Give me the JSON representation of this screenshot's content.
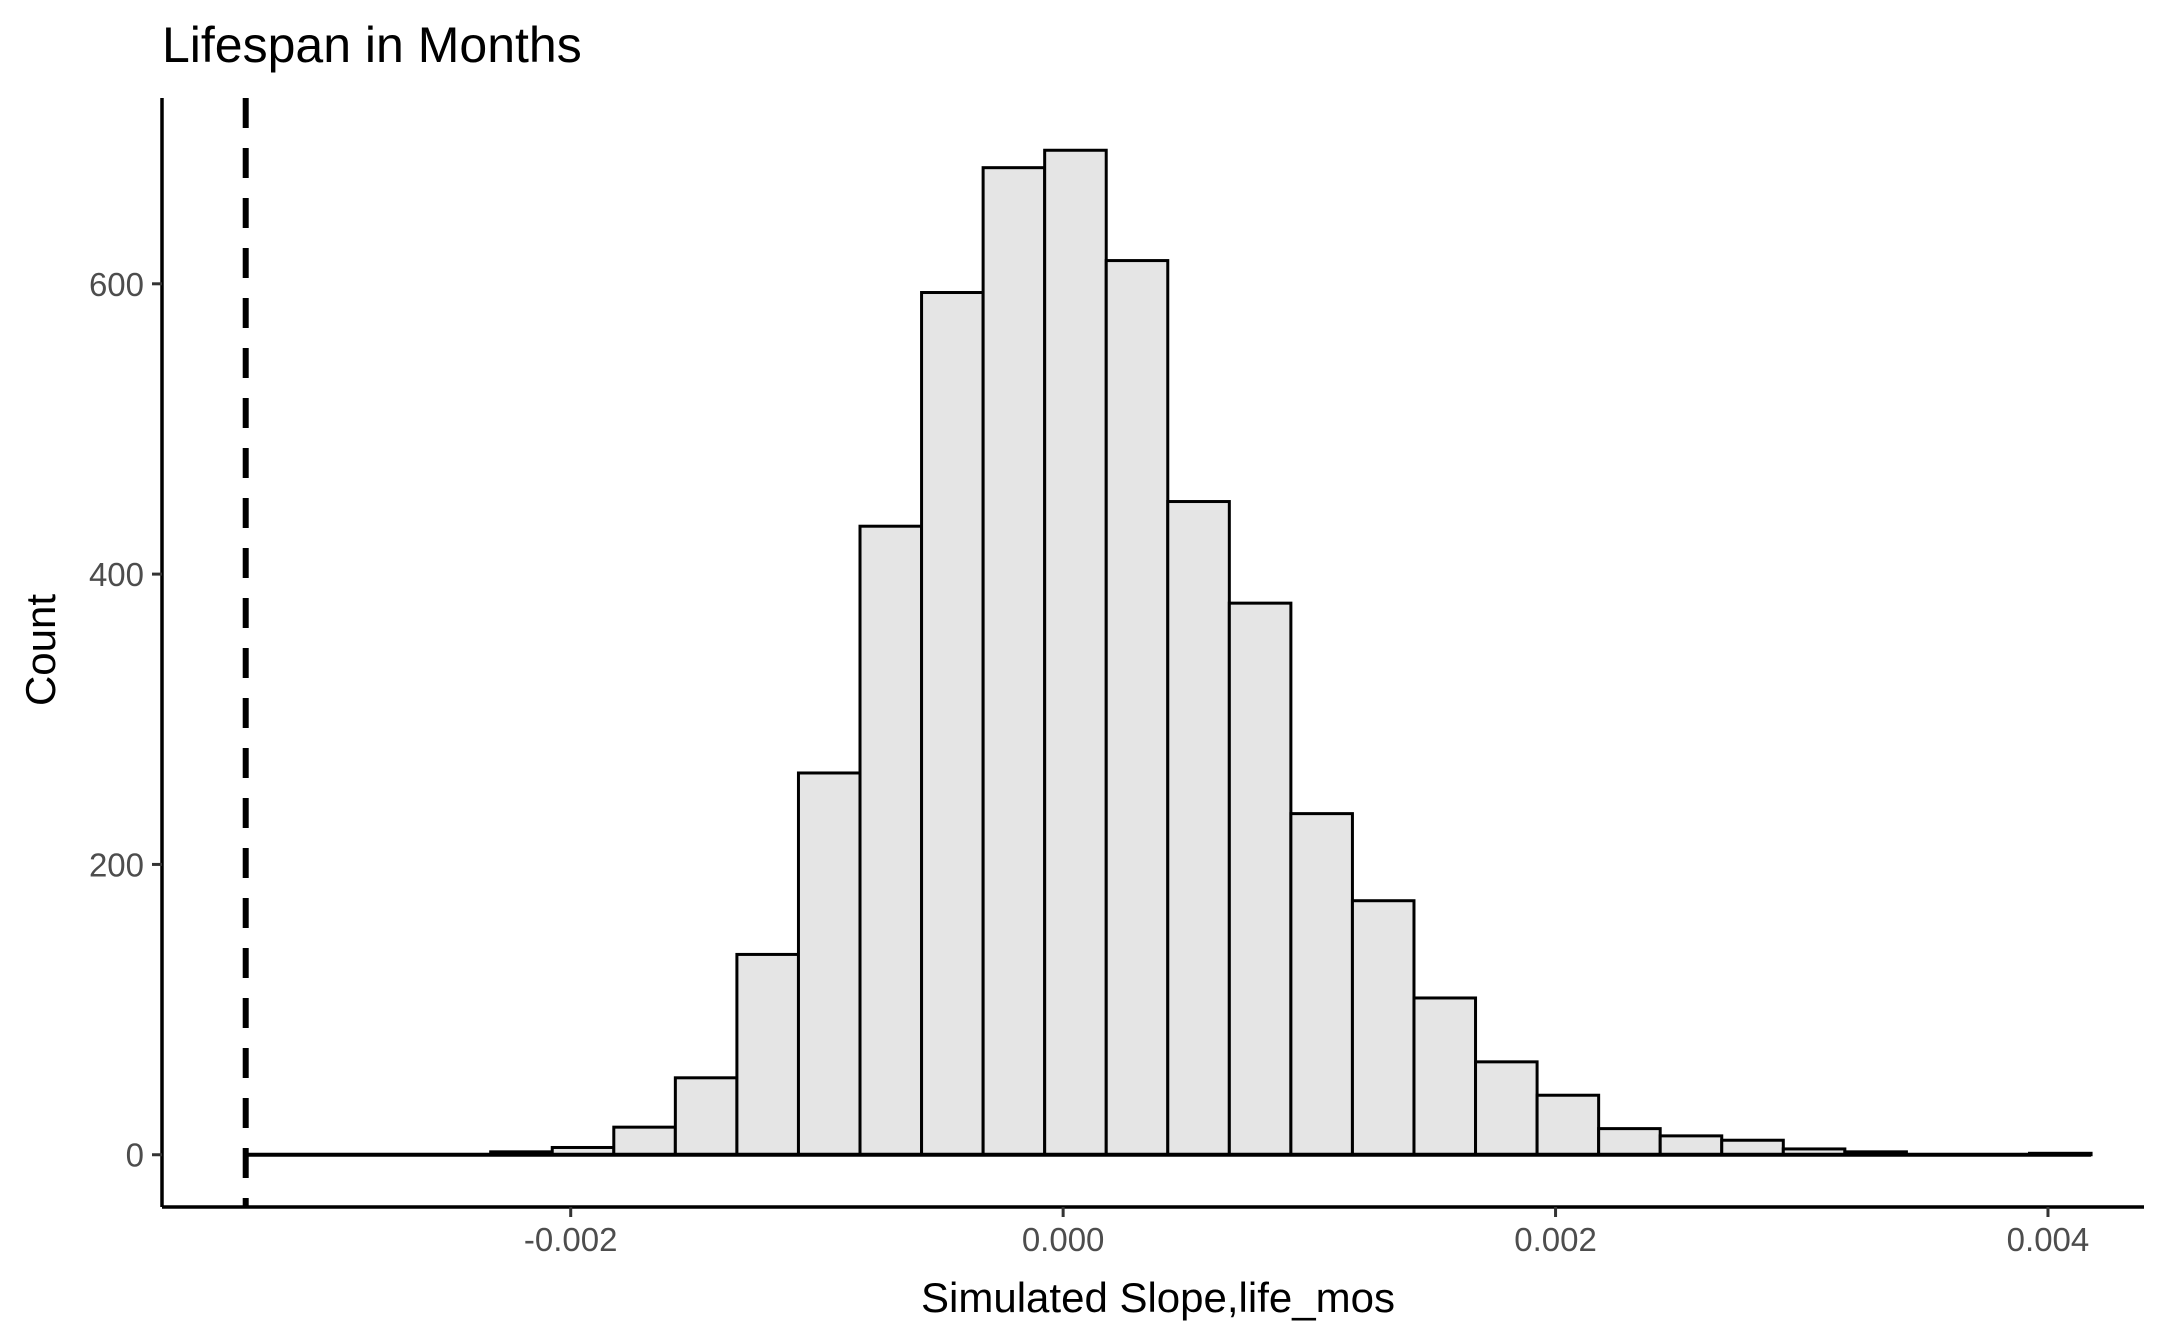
{
  "chart_data": {
    "type": "bar",
    "title": "Lifespan in Months",
    "xlabel": "Simulated Slope,life_mos",
    "ylabel": "Count",
    "x_ticks": [
      -0.002,
      0.0,
      0.002,
      0.004
    ],
    "x_tick_labels": [
      "-0.002",
      "0.000",
      "0.002",
      "0.004"
    ],
    "y_ticks": [
      0,
      200,
      400,
      600
    ],
    "y_tick_labels": [
      "0",
      "200",
      "400",
      "600"
    ],
    "xlim": [
      -0.00366,
      0.00439
    ],
    "ylim": [
      -36,
      728
    ],
    "bin_width": 0.00025,
    "bin_centers": [
      -0.0032,
      -0.00295,
      -0.0027,
      -0.00245,
      -0.0022,
      -0.00195,
      -0.0017,
      -0.00145,
      -0.0012,
      -0.00095,
      -0.0007,
      -0.00045,
      -0.0002,
      5e-05,
      0.0003,
      0.00055,
      0.0008,
      0.00105,
      0.0013,
      0.00155,
      0.0018,
      0.00205,
      0.0023,
      0.00255,
      0.0028,
      0.00305,
      0.0033,
      0.00355,
      0.0038,
      0.00405
    ],
    "counts": [
      0,
      0,
      0,
      0,
      2,
      5,
      19,
      53,
      138,
      263,
      433,
      594,
      680,
      692,
      616,
      450,
      380,
      235,
      175,
      108,
      64,
      41,
      18,
      13,
      10,
      4,
      2,
      0,
      0,
      1
    ],
    "reference_line": {
      "x": -0.00332,
      "style": "dashed"
    },
    "grid": false,
    "legend": "none",
    "colors": {
      "bar_fill": "#e5e5e5",
      "bar_stroke": "#000000",
      "axis": "#000000",
      "tick_label": "#4d4d4d",
      "reference_line": "#000000"
    }
  }
}
